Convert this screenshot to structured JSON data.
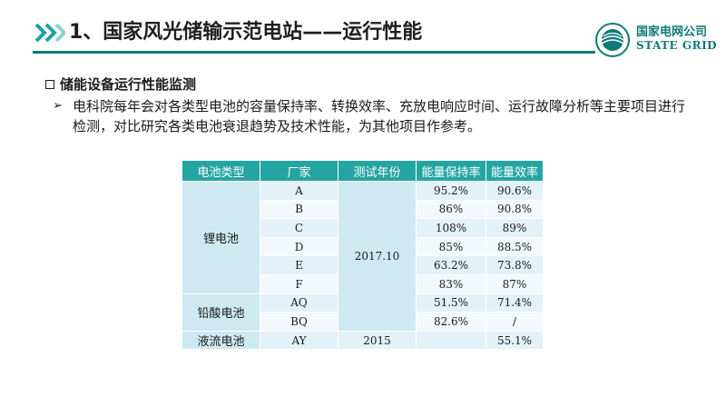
{
  "header": {
    "title": "1、国家风光储输示范电站——运行性能",
    "logo_cn": "国家电网公司",
    "logo_en": "STATE GRID"
  },
  "section": {
    "heading": "储能设备运行性能监测",
    "bullet": "电科院每年会对各类型电池的容量保持率、转换效率、充放电响应时间、运行故障分析等主要项目进行检测，对比研究各类电池衰退趋势及技术性能，为其他项目作参考。"
  },
  "table": {
    "headers": [
      "电池类型",
      "厂家",
      "测试年份",
      "能量保持率",
      "能量效率"
    ],
    "groups": {
      "lithium": "锂电池",
      "lead_acid": "铅酸电池",
      "flow": "液流电池"
    },
    "years": {
      "main": "2017.10",
      "flow": "2015"
    },
    "rows": [
      {
        "vendor": "A",
        "retention": "95.2%",
        "efficiency": "90.6%",
        "retention_red": false,
        "efficiency_red": false
      },
      {
        "vendor": "B",
        "retention": "86%",
        "efficiency": "90.8%",
        "retention_red": false,
        "efficiency_red": false
      },
      {
        "vendor": "C",
        "retention": "108%",
        "efficiency": "89%",
        "retention_red": false,
        "efficiency_red": false
      },
      {
        "vendor": "D",
        "retention": "85%",
        "efficiency": "88.5%",
        "retention_red": true,
        "efficiency_red": true
      },
      {
        "vendor": "E",
        "retention": "63.2%",
        "efficiency": "73.8%",
        "retention_red": true,
        "efficiency_red": true
      },
      {
        "vendor": "F",
        "retention": "83%",
        "efficiency": "87%",
        "retention_red": false,
        "efficiency_red": false
      },
      {
        "vendor": "AQ",
        "retention": "51.5%",
        "efficiency": "71.4%",
        "retention_red": true,
        "efficiency_red": true
      },
      {
        "vendor": "BQ",
        "retention": "82.6%",
        "efficiency": "/",
        "retention_red": false,
        "efficiency_red": false
      },
      {
        "vendor": "AY",
        "retention": "",
        "efficiency": "55.1%",
        "retention_red": false,
        "efficiency_red": false
      }
    ]
  },
  "colors": {
    "accent": "#25a5a2",
    "header_rule": "#0f7a78",
    "warning_red": "#c0392b"
  }
}
